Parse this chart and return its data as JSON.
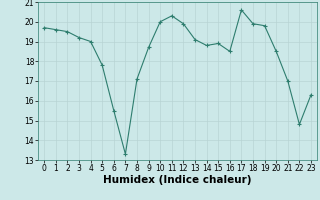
{
  "x": [
    0,
    1,
    2,
    3,
    4,
    5,
    6,
    7,
    8,
    9,
    10,
    11,
    12,
    13,
    14,
    15,
    16,
    17,
    18,
    19,
    20,
    21,
    22,
    23
  ],
  "y": [
    19.7,
    19.6,
    19.5,
    19.2,
    19.0,
    17.8,
    15.5,
    13.3,
    17.1,
    18.7,
    20.0,
    20.3,
    19.9,
    19.1,
    18.8,
    18.9,
    18.5,
    20.6,
    19.9,
    19.8,
    18.5,
    17.0,
    14.8,
    16.3
  ],
  "xlabel": "Humidex (Indice chaleur)",
  "ylim": [
    13,
    21
  ],
  "xlim": [
    -0.5,
    23.5
  ],
  "yticks": [
    13,
    14,
    15,
    16,
    17,
    18,
    19,
    20,
    21
  ],
  "xticks": [
    0,
    1,
    2,
    3,
    4,
    5,
    6,
    7,
    8,
    9,
    10,
    11,
    12,
    13,
    14,
    15,
    16,
    17,
    18,
    19,
    20,
    21,
    22,
    23
  ],
  "line_color": "#2e7d6e",
  "bg_color": "#cce8e8",
  "grid_color": "#b8d4d4",
  "xlabel_fontsize": 7.5,
  "tick_fontsize": 5.5
}
